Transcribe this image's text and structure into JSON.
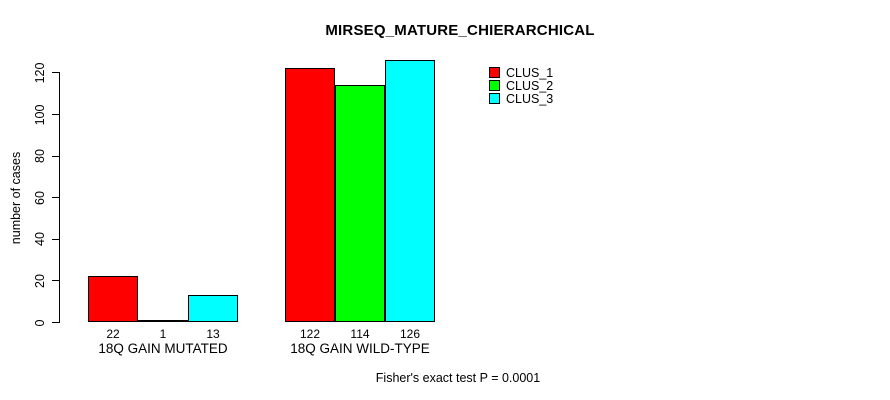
{
  "chart_data": {
    "type": "bar",
    "title": "MIRSEQ_MATURE_CHIERARCHICAL",
    "xlabel": "",
    "ylabel": "number of cases",
    "ylim": [
      0,
      120
    ],
    "yticks": [
      0,
      20,
      40,
      60,
      80,
      100,
      120
    ],
    "grid": false,
    "legend_position": "top-right",
    "categories": [
      "18Q GAIN MUTATED",
      "18Q GAIN WILD-TYPE"
    ],
    "series": [
      {
        "name": "CLUS_1",
        "color": "#ff0000",
        "values": [
          22,
          122
        ]
      },
      {
        "name": "CLUS_2",
        "color": "#00ff00",
        "values": [
          1,
          114
        ]
      },
      {
        "name": "CLUS_3",
        "color": "#00ffff",
        "values": [
          13,
          126
        ]
      }
    ],
    "bar_value_labels": [
      [
        "22",
        "1",
        "13"
      ],
      [
        "122",
        "114",
        "126"
      ]
    ],
    "annotation": "Fisher's exact test P = 0.0001"
  },
  "colors": {
    "background": "#ffffff",
    "axis": "#000000",
    "text": "#000000"
  }
}
